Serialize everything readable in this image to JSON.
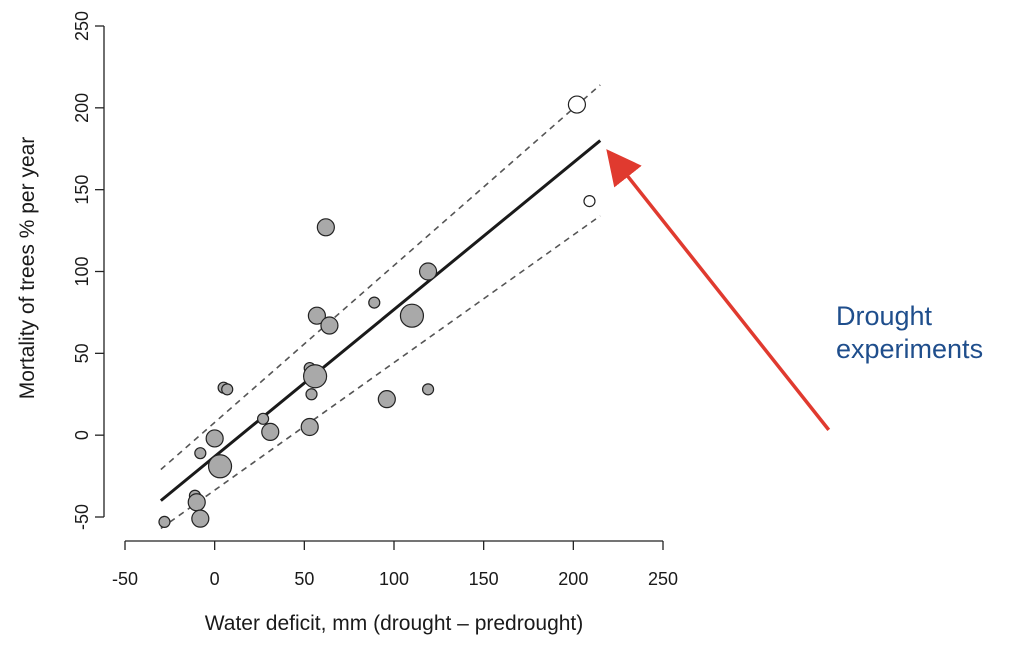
{
  "chart_data": {
    "type": "scatter",
    "title": "",
    "xlabel": "Water deficit, mm (drought – predrought)",
    "ylabel": "Mortality of trees % per year",
    "xlim": [
      -50,
      250
    ],
    "ylim": [
      -50,
      250
    ],
    "x_ticks": [
      "-50",
      "0",
      "50",
      "100",
      "150",
      "200",
      "250"
    ],
    "y_ticks": [
      "-50",
      "0",
      "50",
      "100",
      "150",
      "200",
      "250"
    ],
    "grid": false,
    "points": [
      {
        "x": -28,
        "y": -53,
        "size": "small",
        "fill": "gray"
      },
      {
        "x": -11,
        "y": -37,
        "size": "small",
        "fill": "gray"
      },
      {
        "x": -10,
        "y": -41,
        "size": "medium",
        "fill": "gray"
      },
      {
        "x": -8,
        "y": -51,
        "size": "medium",
        "fill": "gray"
      },
      {
        "x": -8,
        "y": -11,
        "size": "small",
        "fill": "gray"
      },
      {
        "x": 0,
        "y": -2,
        "size": "medium",
        "fill": "gray"
      },
      {
        "x": 3,
        "y": -19,
        "size": "large",
        "fill": "gray"
      },
      {
        "x": 5,
        "y": 29,
        "size": "small",
        "fill": "gray"
      },
      {
        "x": 7,
        "y": 28,
        "size": "small",
        "fill": "gray"
      },
      {
        "x": 27,
        "y": 10,
        "size": "small",
        "fill": "gray"
      },
      {
        "x": 31,
        "y": 2,
        "size": "medium",
        "fill": "gray"
      },
      {
        "x": 53,
        "y": 5,
        "size": "medium",
        "fill": "gray"
      },
      {
        "x": 53,
        "y": 41,
        "size": "small",
        "fill": "gray"
      },
      {
        "x": 54,
        "y": 25,
        "size": "small",
        "fill": "gray"
      },
      {
        "x": 56,
        "y": 36,
        "size": "large",
        "fill": "gray"
      },
      {
        "x": 57,
        "y": 73,
        "size": "medium",
        "fill": "gray"
      },
      {
        "x": 62,
        "y": 127,
        "size": "medium",
        "fill": "gray"
      },
      {
        "x": 64,
        "y": 67,
        "size": "medium",
        "fill": "gray"
      },
      {
        "x": 89,
        "y": 81,
        "size": "small",
        "fill": "gray"
      },
      {
        "x": 96,
        "y": 22,
        "size": "medium",
        "fill": "gray"
      },
      {
        "x": 110,
        "y": 73,
        "size": "large",
        "fill": "gray"
      },
      {
        "x": 119,
        "y": 100,
        "size": "medium",
        "fill": "gray"
      },
      {
        "x": 119,
        "y": 28,
        "size": "small",
        "fill": "gray"
      },
      {
        "x": 202,
        "y": 202,
        "size": "medium",
        "fill": "white"
      },
      {
        "x": 209,
        "y": 143,
        "size": "small",
        "fill": "white"
      }
    ],
    "fit_line": {
      "x": [
        -30,
        215
      ],
      "y": [
        -40,
        180
      ]
    },
    "upper_band": {
      "x": [
        -30,
        215
      ],
      "y": [
        -21,
        214
      ]
    },
    "lower_band": {
      "x": [
        -30,
        215
      ],
      "y": [
        -57,
        134
      ]
    },
    "annotation": {
      "lines": [
        "Drought",
        "experiments"
      ],
      "arrow_from": [
        227,
        101
      ],
      "arrow_to": [
        218,
        172
      ],
      "arrow_color": "#e03a2f",
      "text_color": "#1f4e8c"
    }
  }
}
